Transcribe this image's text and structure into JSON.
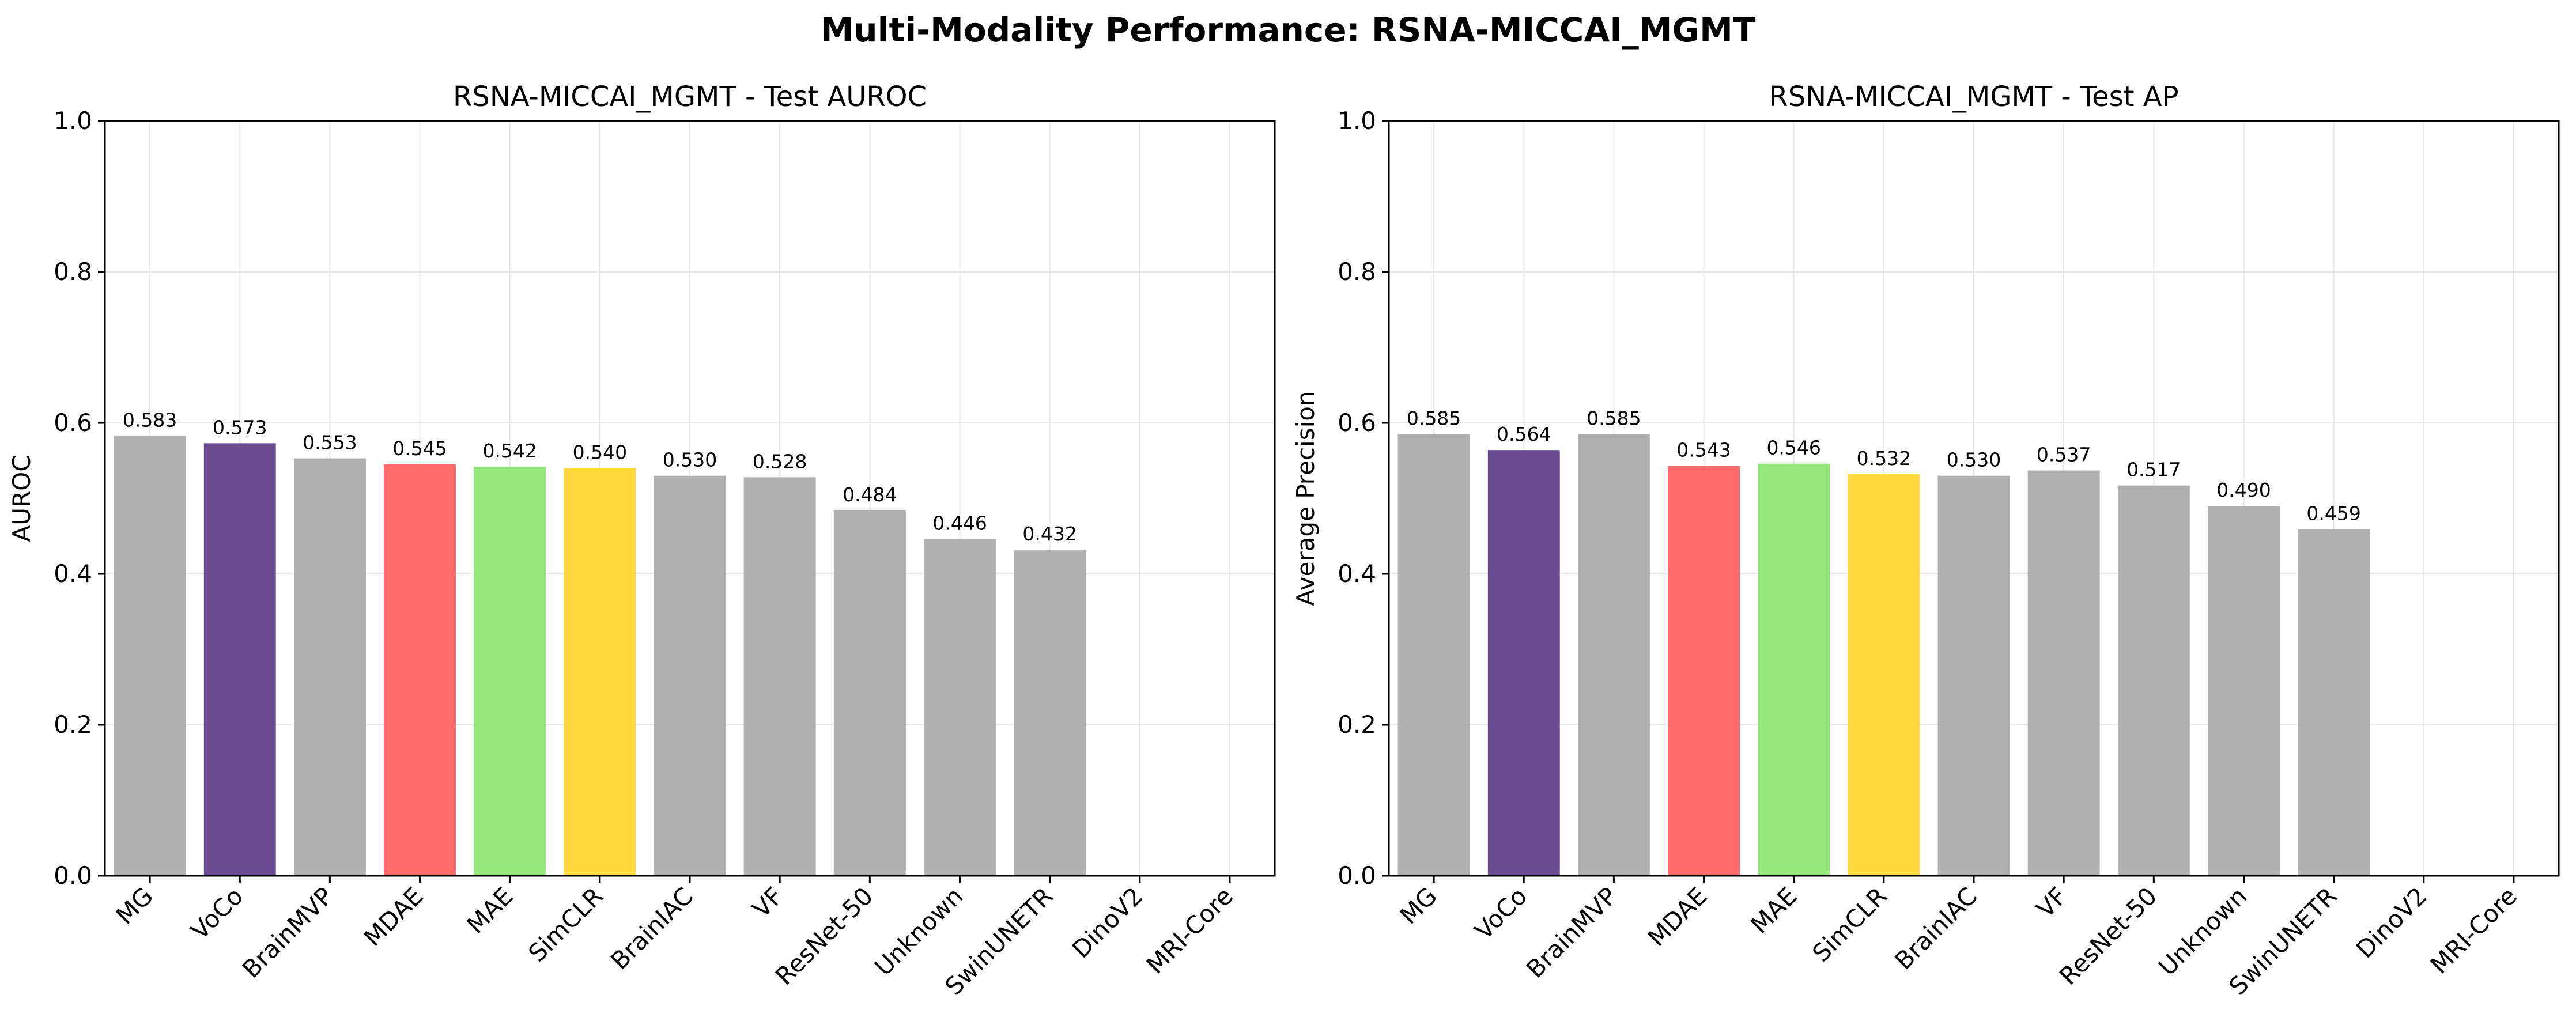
{
  "figure": {
    "suptitle": "Multi-Modality Performance: RSNA-MICCAI_MGMT"
  },
  "colors": {
    "default_bar": "#b0b0b0",
    "VoCo": "#6b4c93",
    "MDAE": "#ff6b6b",
    "MAE": "#95e67c",
    "SimCLR": "#ffd93d",
    "grid": "#e6e6e6",
    "axis": "#000000"
  },
  "chart_data": [
    {
      "type": "bar",
      "title": "RSNA-MICCAI_MGMT - Test AUROC",
      "xlabel": "",
      "ylabel": "AUROC",
      "ylim": [
        0,
        1.0
      ],
      "yticks": [
        "0.0",
        "0.2",
        "0.4",
        "0.6",
        "0.8",
        "1.0"
      ],
      "grid": true,
      "categories": [
        "MG",
        "VoCo",
        "BrainMVP",
        "MDAE",
        "MAE",
        "SimCLR",
        "BrainIAC",
        "VF",
        "ResNet-50",
        "Unknown",
        "SwinUNETR",
        "DinoV2",
        "MRI-Core"
      ],
      "values": [
        0.583,
        0.573,
        0.553,
        0.545,
        0.542,
        0.54,
        0.53,
        0.528,
        0.484,
        0.446,
        0.432,
        null,
        null
      ],
      "value_labels": [
        "0.583",
        "0.573",
        "0.553",
        "0.545",
        "0.542",
        "0.540",
        "0.530",
        "0.528",
        "0.484",
        "0.446",
        "0.432",
        "",
        ""
      ]
    },
    {
      "type": "bar",
      "title": "RSNA-MICCAI_MGMT - Test AP",
      "xlabel": "",
      "ylabel": "Average Precision",
      "ylim": [
        0,
        1.0
      ],
      "yticks": [
        "0.0",
        "0.2",
        "0.4",
        "0.6",
        "0.8",
        "1.0"
      ],
      "grid": true,
      "categories": [
        "MG",
        "VoCo",
        "BrainMVP",
        "MDAE",
        "MAE",
        "SimCLR",
        "BrainIAC",
        "VF",
        "ResNet-50",
        "Unknown",
        "SwinUNETR",
        "DinoV2",
        "MRI-Core"
      ],
      "values": [
        0.585,
        0.564,
        0.585,
        0.543,
        0.546,
        0.532,
        0.53,
        0.537,
        0.517,
        0.49,
        0.459,
        null,
        null
      ],
      "value_labels": [
        "0.585",
        "0.564",
        "0.585",
        "0.543",
        "0.546",
        "0.532",
        "0.530",
        "0.537",
        "0.517",
        "0.490",
        "0.459",
        "",
        ""
      ]
    }
  ]
}
